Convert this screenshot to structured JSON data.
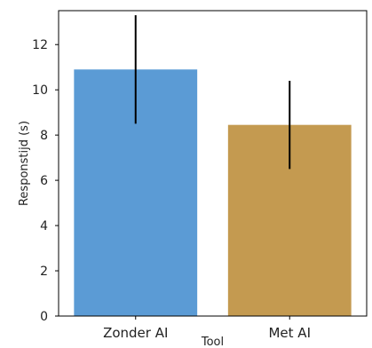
{
  "chart_data": {
    "type": "bar",
    "title": "",
    "xlabel": "Tool",
    "ylabel": "Responstijd (s)",
    "categories": [
      "Zonder AI",
      "Met AI"
    ],
    "values": [
      10.9,
      8.45
    ],
    "error_low": [
      8.5,
      6.5
    ],
    "error_high": [
      13.3,
      10.4
    ],
    "ylim": [
      0,
      13.5
    ],
    "yticks": [
      0,
      2,
      4,
      6,
      8,
      10,
      12
    ],
    "colors": [
      "#5b9bd5",
      "#c49a50"
    ],
    "error_color": "#000000",
    "grid": false,
    "legend": "none"
  }
}
